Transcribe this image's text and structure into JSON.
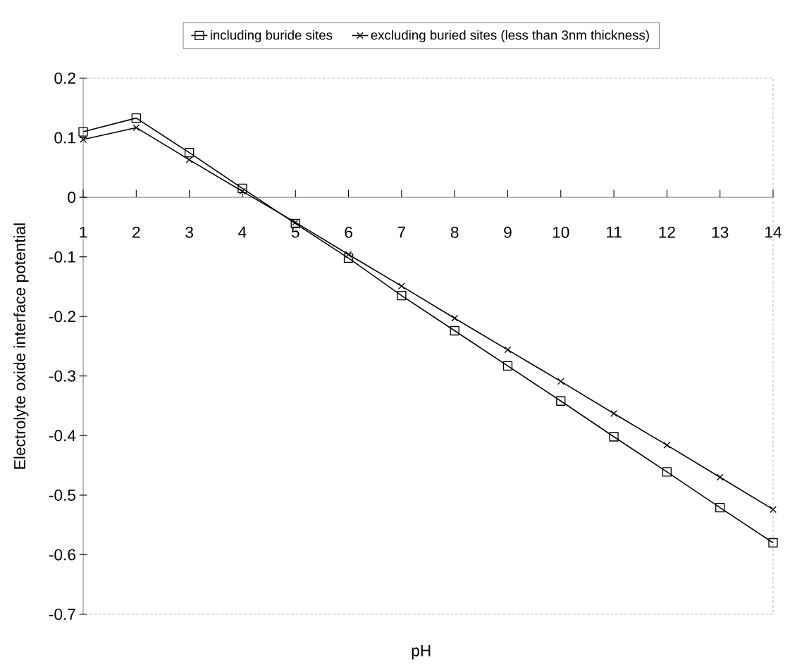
{
  "chart_data": {
    "type": "line",
    "xlabel": "pH",
    "ylabel": "Electrolyte oxide interface potential",
    "x": [
      1,
      2,
      3,
      4,
      5,
      6,
      7,
      8,
      9,
      10,
      11,
      12,
      13,
      14
    ],
    "xlim": [
      1,
      14
    ],
    "xticks": [
      1,
      2,
      3,
      4,
      5,
      6,
      7,
      8,
      9,
      10,
      11,
      12,
      13,
      14
    ],
    "ylim": [
      -0.7,
      0.2
    ],
    "yticks": [
      -0.7,
      -0.6,
      -0.5,
      -0.4,
      -0.3,
      -0.2,
      -0.1,
      0,
      0.1,
      0.2
    ],
    "legend": "top",
    "grid": false,
    "series": [
      {
        "name": "including buride sites",
        "color": "#000000",
        "marker": "square",
        "values": [
          0.11,
          0.133,
          0.075,
          0.015,
          -0.044,
          -0.102,
          -0.165,
          -0.224,
          -0.283,
          -0.342,
          -0.402,
          -0.461,
          -0.521,
          -0.58
        ]
      },
      {
        "name": "excluding buried sites (less than 3nm thickness)",
        "color": "#000000",
        "marker": "cross",
        "values": [
          0.097,
          0.117,
          0.063,
          0.01,
          -0.042,
          -0.096,
          -0.149,
          -0.203,
          -0.256,
          -0.309,
          -0.363,
          -0.416,
          -0.47,
          -0.524
        ]
      }
    ]
  }
}
